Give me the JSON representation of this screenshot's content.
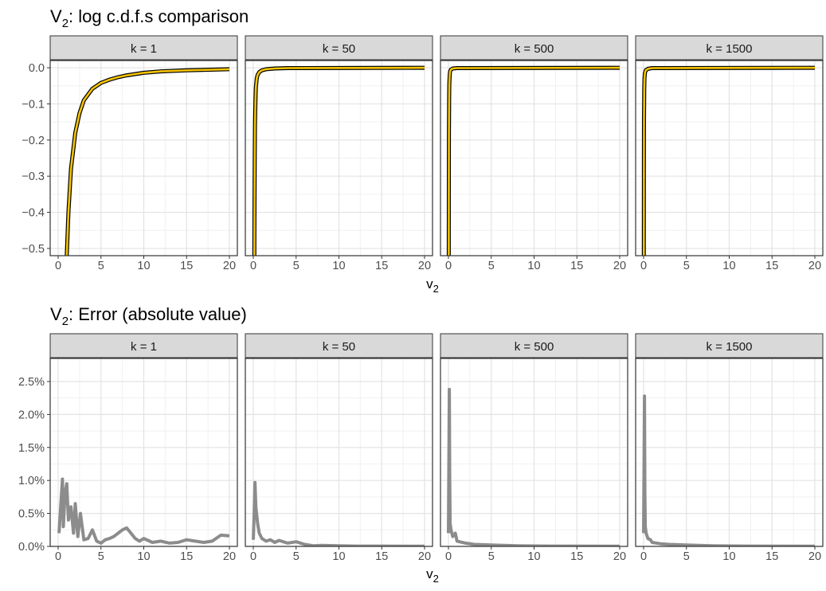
{
  "chart_data": [
    {
      "type": "line",
      "title": "V₂: log c.d.f.s comparison",
      "xlabel": "v₂",
      "ylabel": "",
      "xlim": [
        0,
        20
      ],
      "ylim": [
        -0.52,
        0.02
      ],
      "x_ticks": [
        0,
        5,
        10,
        15,
        20
      ],
      "x_tick_labels": [
        "0",
        "5",
        "10",
        "15",
        "20"
      ],
      "y_ticks": [
        0.0,
        -0.1,
        -0.2,
        -0.3,
        -0.4,
        -0.5
      ],
      "y_tick_labels": [
        "0.0",
        "−0.1",
        "−0.2",
        "−0.3",
        "−0.4",
        "−0.5"
      ],
      "grid": true,
      "colors": {
        "approx": "#f5c400",
        "exact": "#000000"
      },
      "panels": [
        {
          "label": "k = 1",
          "x": [
            1.0,
            1.2,
            1.5,
            2,
            2.5,
            3,
            4,
            5,
            6,
            7,
            8,
            10,
            12,
            15,
            20
          ],
          "y": [
            -0.52,
            -0.4,
            -0.28,
            -0.18,
            -0.125,
            -0.09,
            -0.058,
            -0.042,
            -0.033,
            -0.026,
            -0.021,
            -0.014,
            -0.01,
            -0.007,
            -0.004
          ]
        },
        {
          "label": "k = 50",
          "x": [
            0.12,
            0.14,
            0.17,
            0.2,
            0.25,
            0.3,
            0.4,
            0.5,
            0.7,
            1.0,
            1.5,
            2.5,
            4,
            20
          ],
          "y": [
            -0.52,
            -0.38,
            -0.25,
            -0.16,
            -0.09,
            -0.055,
            -0.03,
            -0.02,
            -0.012,
            -0.007,
            -0.004,
            -0.002,
            -0.001,
            0
          ]
        },
        {
          "label": "k = 500",
          "x": [
            0.04,
            0.05,
            0.06,
            0.08,
            0.1,
            0.15,
            0.2,
            0.3,
            0.5,
            1.0,
            20
          ],
          "y": [
            -0.52,
            -0.3,
            -0.18,
            -0.08,
            -0.045,
            -0.02,
            -0.01,
            -0.005,
            -0.002,
            -0.001,
            0
          ]
        },
        {
          "label": "k = 1500",
          "x": [
            0.03,
            0.04,
            0.05,
            0.07,
            0.1,
            0.15,
            0.25,
            0.5,
            1.0,
            20
          ],
          "y": [
            -0.52,
            -0.25,
            -0.14,
            -0.06,
            -0.03,
            -0.015,
            -0.007,
            -0.003,
            -0.001,
            0
          ]
        }
      ]
    },
    {
      "type": "line",
      "title": "V₂: Error (absolute value)",
      "xlabel": "v₂",
      "ylabel": "",
      "xlim": [
        0,
        20
      ],
      "ylim": [
        0,
        2.85
      ],
      "x_ticks": [
        0,
        5,
        10,
        15,
        20
      ],
      "x_tick_labels": [
        "0",
        "5",
        "10",
        "15",
        "20"
      ],
      "y_ticks": [
        0,
        0.5,
        1.0,
        1.5,
        2.0,
        2.5
      ],
      "y_tick_labels": [
        "0.0%",
        "0.5%",
        "1.0%",
        "1.5%",
        "2.0%",
        "2.5%"
      ],
      "grid": true,
      "colors": {
        "error": "#8c8c8c"
      },
      "panels": [
        {
          "label": "k = 1",
          "x": [
            0.1,
            0.3,
            0.5,
            0.6,
            0.8,
            1.0,
            1.2,
            1.5,
            1.8,
            2.0,
            2.3,
            2.6,
            3.0,
            3.5,
            4.0,
            4.5,
            5.0,
            5.5,
            6.0,
            6.5,
            7.0,
            7.5,
            8.0,
            8.5,
            9.0,
            9.5,
            10.0,
            11.0,
            12.0,
            13.0,
            14.0,
            15.0,
            16.0,
            17.0,
            18.0,
            19.0,
            20.0
          ],
          "y": [
            0.2,
            0.6,
            1.02,
            0.3,
            0.8,
            0.95,
            0.4,
            0.6,
            0.2,
            0.65,
            0.15,
            0.5,
            0.1,
            0.12,
            0.25,
            0.08,
            0.05,
            0.1,
            0.12,
            0.15,
            0.2,
            0.25,
            0.28,
            0.2,
            0.12,
            0.08,
            0.12,
            0.06,
            0.08,
            0.05,
            0.06,
            0.1,
            0.08,
            0.06,
            0.08,
            0.17,
            0.16
          ]
        },
        {
          "label": "k = 50",
          "x": [
            0.0,
            0.1,
            0.2,
            0.3,
            0.5,
            0.7,
            1.0,
            1.5,
            2.0,
            2.5,
            3.0,
            4.0,
            5.0,
            6.0,
            7.0,
            8.0,
            10.0,
            12.0,
            15.0,
            20.0
          ],
          "y": [
            0.1,
            0.5,
            0.97,
            0.6,
            0.35,
            0.2,
            0.12,
            0.08,
            0.1,
            0.06,
            0.09,
            0.05,
            0.07,
            0.03,
            0.01,
            0.015,
            0.01,
            0.005,
            0.005,
            0.003
          ]
        },
        {
          "label": "k = 500",
          "x": [
            0.0,
            0.05,
            0.1,
            0.15,
            0.2,
            0.3,
            0.5,
            0.8,
            1.0,
            2.0,
            3.0,
            5.0,
            8.0,
            12.0,
            20.0
          ],
          "y": [
            0.2,
            1.2,
            2.38,
            1.0,
            0.35,
            0.25,
            0.15,
            0.2,
            0.08,
            0.05,
            0.03,
            0.02,
            0.01,
            0.005,
            0.003
          ]
        },
        {
          "label": "k = 1500",
          "x": [
            0.0,
            0.05,
            0.1,
            0.15,
            0.2,
            0.3,
            0.5,
            0.8,
            1.0,
            2.0,
            3.0,
            5.0,
            8.0,
            12.0,
            20.0
          ],
          "y": [
            0.2,
            1.1,
            2.28,
            0.8,
            0.3,
            0.2,
            0.12,
            0.1,
            0.06,
            0.04,
            0.03,
            0.02,
            0.01,
            0.005,
            0.003
          ]
        }
      ]
    }
  ]
}
